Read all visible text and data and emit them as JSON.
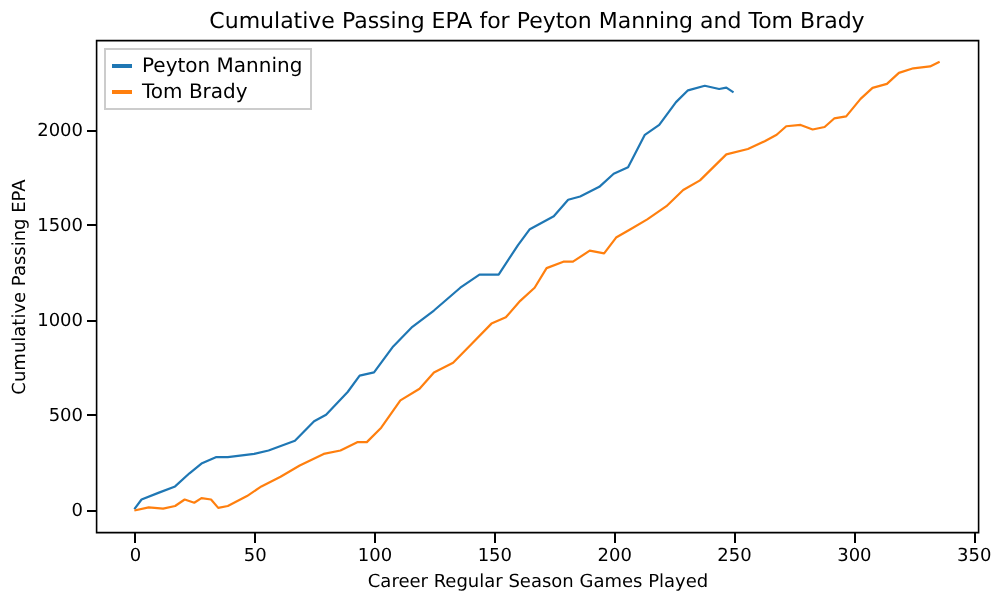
{
  "chart_data": {
    "type": "line",
    "title": "Cumulative Passing EPA for Peyton Manning and Tom Brady",
    "xlabel": "Career Regular Season Games Played",
    "ylabel": "Cumulative Passing EPA",
    "xlim": [
      -16,
      352
    ],
    "ylim": [
      -120,
      2470
    ],
    "xticks": [
      0,
      50,
      100,
      150,
      200,
      250,
      300,
      350
    ],
    "yticks": [
      0,
      500,
      1000,
      1500,
      2000
    ],
    "grid": false,
    "legend": "top left",
    "marker": "none",
    "line_style": "solid",
    "series": [
      {
        "name": "Peyton Manning",
        "color": "#1f77b4",
        "x": [
          0,
          3,
          10,
          17,
          23,
          28,
          34,
          39,
          50,
          56,
          67,
          75,
          80,
          89,
          94,
          100,
          108,
          116,
          125,
          136,
          144,
          152,
          160,
          165,
          175,
          181,
          186,
          194,
          200,
          206,
          213,
          219,
          226,
          231,
          238,
          244,
          247,
          250
        ],
        "values": [
          0,
          51,
          86,
          120,
          189,
          240,
          274,
          274,
          291,
          309,
          360,
          463,
          497,
          617,
          703,
          720,
          857,
          960,
          1046,
          1166,
          1235,
          1235,
          1389,
          1474,
          1542,
          1629,
          1646,
          1697,
          1766,
          1800,
          1971,
          2023,
          2143,
          2205,
          2229,
          2212,
          2219,
          2194
        ]
      },
      {
        "name": "Tom Brady",
        "color": "#ff7f0e",
        "x": [
          0,
          6,
          12,
          17,
          21,
          25,
          28,
          32,
          35,
          39,
          47,
          53,
          61,
          69,
          79,
          86,
          93,
          97,
          103,
          111,
          119,
          125,
          133,
          141,
          149,
          155,
          161,
          167,
          172,
          179,
          183,
          190,
          196,
          201,
          207,
          214,
          222,
          229,
          236,
          247,
          256,
          263,
          268,
          272,
          278,
          283,
          288,
          292,
          297,
          303,
          308,
          314,
          319,
          325,
          332,
          336
        ],
        "values": [
          -7,
          10,
          3,
          17,
          51,
          34,
          58,
          51,
          7,
          17,
          69,
          120,
          171,
          230,
          291,
          309,
          353,
          353,
          429,
          573,
          634,
          720,
          771,
          874,
          977,
          1010,
          1097,
          1166,
          1269,
          1303,
          1303,
          1361,
          1347,
          1430,
          1474,
          1526,
          1595,
          1680,
          1731,
          1868,
          1896,
          1937,
          1971,
          2016,
          2023,
          1999,
          2012,
          2057,
          2068,
          2160,
          2218,
          2239,
          2297,
          2321,
          2331,
          2356
        ]
      }
    ]
  }
}
